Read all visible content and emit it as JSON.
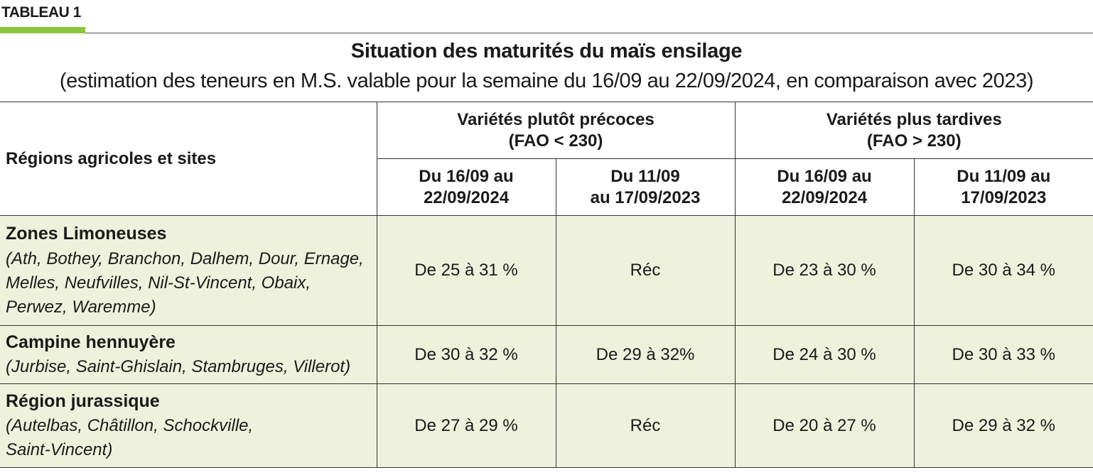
{
  "tag": "TABLEAU 1",
  "title": "Situation des maturités du maïs ensilage",
  "subtitle": "(estimation des teneurs en M.S. valable pour la semaine du 16/09 au 22/09/2024, en comparaison avec 2023)",
  "header": {
    "region_col": "Régions agricoles et sites",
    "group1_line1": "Variétés plutôt précoces",
    "group1_line2": "(FAO < 230)",
    "group2_line1": "Variétés plus tardives",
    "group2_line2": "(FAO > 230)",
    "sub1_line1": "Du 16/09 au",
    "sub1_line2": "22/09/2024",
    "sub2_line1": "Du 11/09",
    "sub2_line2": "au 17/09/2023",
    "sub3_line1": "Du 16/09 au",
    "sub3_line2": "22/09/2024",
    "sub4_line1": "Du 11/09 au",
    "sub4_line2": "17/09/2023"
  },
  "rows": [
    {
      "name": "Zones Limoneuses",
      "sites_line1": "(Ath, Bothey, Branchon, Dalhem, Dour, Ernage,",
      "sites_line2": "Melles, Neufvilles, Nil-St-Vincent, Obaix,",
      "sites_line3": "Perwez, Waremme)",
      "values": [
        "De 25 à 31 %",
        "Réc",
        "De 23 à 30 %",
        "De 30 à 34 %"
      ]
    },
    {
      "name": "Campine hennuyère",
      "sites_line1": "(Jurbise, Saint-Ghislain, Stambruges, Villerot)",
      "values": [
        "De 30 à 32 %",
        "De 29 à 32%",
        "De 24 à 30 %",
        "De 30 à 33 %"
      ]
    },
    {
      "name": "Région jurassique",
      "sites_line1": "(Autelbas, Châtillon, Schockville,",
      "sites_line2": "Saint-Vincent)",
      "values": [
        "De 27 à 29 %",
        "Réc",
        "De 20 à 27 %",
        "De 29 à 32 %"
      ]
    }
  ],
  "colors": {
    "accent_bar": "#8cc63f",
    "cell_background": "#eef2dd"
  }
}
